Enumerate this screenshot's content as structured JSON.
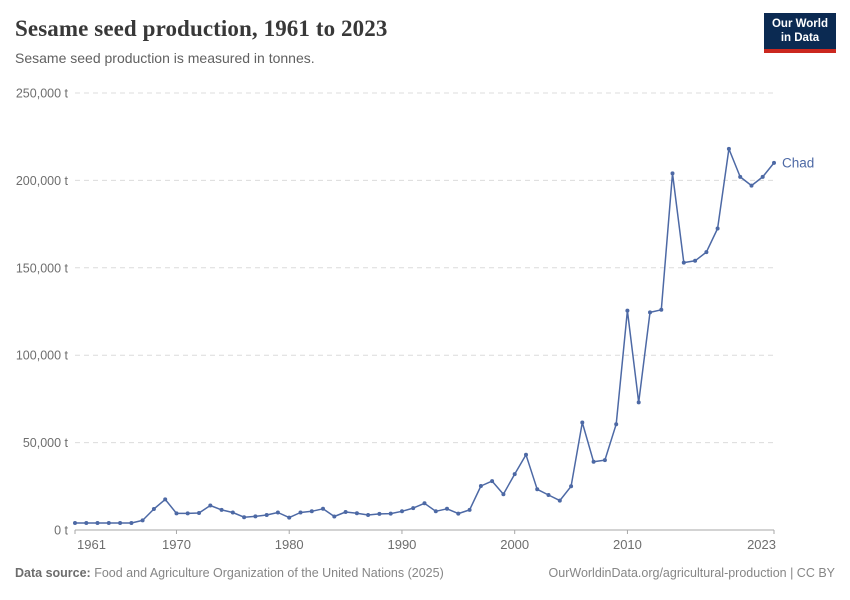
{
  "header": {
    "title": "Sesame seed production, 1961 to 2023",
    "subtitle": "Sesame seed production is measured in tonnes.",
    "logo": {
      "line1": "Our World",
      "line2": "in Data",
      "bg_color": "#0b2a52",
      "accent_color": "#cb281f"
    }
  },
  "chart_data": {
    "type": "line",
    "title": "Sesame seed production, 1961 to 2023",
    "subtitle": "Sesame seed production is measured in tonnes.",
    "xlabel": "",
    "ylabel": "",
    "xlim": [
      1961,
      2023
    ],
    "ylim": [
      0,
      250000
    ],
    "grid": "horizontal-dashed",
    "legend": "end-of-line-label",
    "x_ticks": [
      1961,
      1970,
      1980,
      1990,
      2000,
      2010,
      2023
    ],
    "x_tick_labels": [
      "1961",
      "1970",
      "1980",
      "1990",
      "2000",
      "2010",
      "2023"
    ],
    "y_ticks": [
      0,
      50000,
      100000,
      150000,
      200000,
      250000
    ],
    "y_tick_labels": [
      "0 t",
      "50,000 t",
      "100,000 t",
      "150,000 t",
      "200,000 t",
      "250,000 t"
    ],
    "years": [
      1961,
      1962,
      1963,
      1964,
      1965,
      1966,
      1967,
      1968,
      1969,
      1970,
      1971,
      1972,
      1973,
      1974,
      1975,
      1976,
      1977,
      1978,
      1979,
      1980,
      1981,
      1982,
      1983,
      1984,
      1985,
      1986,
      1987,
      1988,
      1989,
      1990,
      1991,
      1992,
      1993,
      1994,
      1995,
      1996,
      1997,
      1998,
      1999,
      2000,
      2001,
      2002,
      2003,
      2004,
      2005,
      2006,
      2007,
      2008,
      2009,
      2010,
      2011,
      2012,
      2013,
      2014,
      2015,
      2016,
      2017,
      2018,
      2019,
      2020,
      2021,
      2022,
      2023
    ],
    "series": [
      {
        "name": "Chad",
        "color": "#4d69a5",
        "values": [
          4000,
          4000,
          4000,
          4000,
          4000,
          4000,
          5500,
          12000,
          17500,
          9500,
          9500,
          9700,
          14000,
          11500,
          10000,
          7300,
          7800,
          8600,
          10000,
          7100,
          10000,
          10700,
          12100,
          7700,
          10300,
          9600,
          8600,
          9200,
          9400,
          10700,
          12500,
          15300,
          10700,
          12100,
          9400,
          11500,
          25200,
          28000,
          20500,
          32000,
          43000,
          23300,
          20000,
          16800,
          25000,
          61500,
          39000,
          40000,
          60500,
          125500,
          73000,
          124500,
          126000,
          204000,
          153000,
          154000,
          159000,
          172500,
          218000,
          202000,
          197000,
          202000,
          210000
        ]
      }
    ]
  },
  "footer": {
    "source_label": "Data source:",
    "source_text": "Food and Agriculture Organization of the United Nations (2025)",
    "attribution": "OurWorldinData.org/agricultural-production | CC BY"
  },
  "colors": {
    "series_line": "#4d69a5",
    "gridline": "#dcdcdc",
    "axis": "#a7a7a7",
    "tick_text": "#6e6e6e",
    "title_text": "#383838",
    "subtitle_text": "#616161",
    "footer_text": "#868686"
  }
}
